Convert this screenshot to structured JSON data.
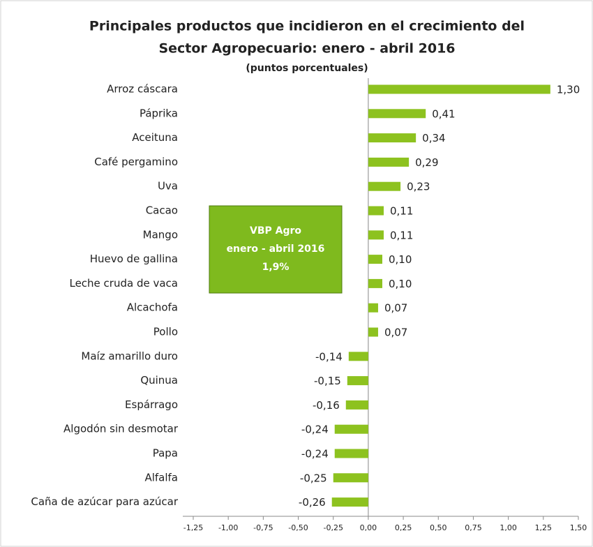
{
  "chart_data": {
    "type": "barh",
    "title": [
      "Principales productos que incidieron en el crecimiento del",
      "Sector Agropecuario: enero - abril 2016"
    ],
    "subtitle": "(puntos porcentuales)",
    "categories": [
      "Arroz cáscara",
      "Páprika",
      "Aceituna",
      "Café pergamino",
      "Uva",
      "Cacao",
      "Mango",
      "Huevo de gallina",
      "Leche cruda de vaca",
      "Alcachofa",
      "Pollo",
      "Maíz amarillo duro",
      "Quinua",
      "Espárrago",
      "Algodón sin desmotar",
      "Papa",
      "Alfalfa",
      "Caña de azúcar para azúcar"
    ],
    "values": [
      1.3,
      0.41,
      0.34,
      0.29,
      0.23,
      0.11,
      0.11,
      0.1,
      0.1,
      0.07,
      0.07,
      -0.14,
      -0.15,
      -0.16,
      -0.24,
      -0.24,
      -0.25,
      -0.26
    ],
    "value_labels": [
      "1,30",
      "0,41",
      "0,34",
      "0,29",
      "0,23",
      "0,11",
      "0,11",
      "0,10",
      "0,10",
      "0,07",
      "0,07",
      "-0,14",
      "-0,15",
      "-0,16",
      "-0,24",
      "-0,24",
      "-0,25",
      "-0,26"
    ],
    "color": "#8dc21f",
    "xlim": [
      -1.25,
      1.5
    ],
    "xticks": [
      {
        "value": -1.25,
        "label": "-1,25"
      },
      {
        "value": -1,
        "label": "-1,00"
      },
      {
        "value": -0.75,
        "label": "-0,75"
      },
      {
        "value": -0.5,
        "label": "-0,50"
      },
      {
        "value": -0.25,
        "label": "-0,25"
      },
      {
        "value": 0,
        "label": "0,00"
      },
      {
        "value": 0.25,
        "label": "0,25"
      },
      {
        "value": 0.5,
        "label": "0,50"
      },
      {
        "value": 0.75,
        "label": "0,75"
      },
      {
        "value": 1,
        "label": "1,00"
      },
      {
        "value": 1.25,
        "label": "1,25"
      },
      {
        "value": 1.5,
        "label": "1,50"
      }
    ],
    "annotation": [
      "VBP Agro",
      "enero - abril 2016",
      "1,9%"
    ]
  }
}
